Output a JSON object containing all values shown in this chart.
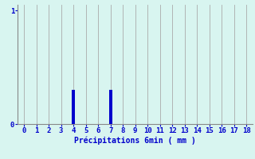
{
  "x_values": [
    0,
    1,
    2,
    3,
    4,
    5,
    6,
    7,
    8,
    9,
    10,
    11,
    12,
    13,
    14,
    15,
    16,
    17,
    18
  ],
  "bar_data": [
    0,
    0,
    0,
    0,
    0.3,
    0,
    0,
    0.3,
    0,
    0,
    0,
    0,
    0,
    0,
    0,
    0,
    0,
    0,
    0
  ],
  "bar_color": "#0000cc",
  "background_color": "#d8f5f0",
  "grid_color": "#aaaaaa",
  "axis_color": "#888888",
  "text_color": "#0000cc",
  "xlabel": "Précipitations 6min ( mm )",
  "xlim": [
    -0.5,
    18.5
  ],
  "ylim": [
    0,
    1.05
  ],
  "yticks": [
    0,
    1
  ],
  "xticks": [
    0,
    1,
    2,
    3,
    4,
    5,
    6,
    7,
    8,
    9,
    10,
    11,
    12,
    13,
    14,
    15,
    16,
    17,
    18
  ],
  "bar_width": 0.25,
  "xlabel_fontsize": 7,
  "tick_fontsize": 6.5
}
